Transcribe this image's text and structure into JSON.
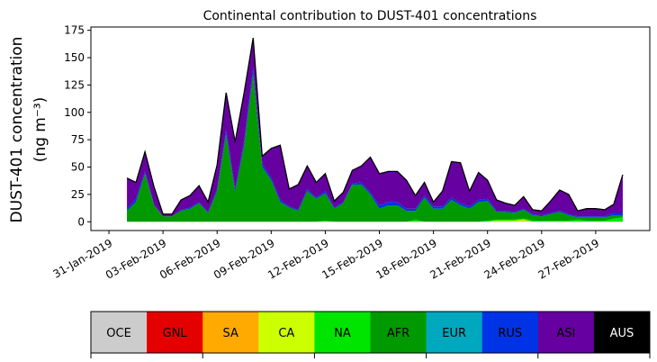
{
  "chart_data": {
    "type": "area",
    "title": "Continental contribution to DUST-401 concentrations",
    "ylabel_line1": "DUST-401 concentration",
    "ylabel_line2": "(ng m⁻³)",
    "xlabel": "",
    "stacked": true,
    "x_start": "2019-02-01",
    "x_step_days": 0.5,
    "x_tick_labels": [
      "31-Jan-2019",
      "03-Feb-2019",
      "06-Feb-2019",
      "09-Feb-2019",
      "12-Feb-2019",
      "15-Feb-2019",
      "18-Feb-2019",
      "21-Feb-2019",
      "24-Feb-2019",
      "27-Feb-2019"
    ],
    "x_tick_days": [
      -1,
      2,
      5,
      8,
      11,
      14,
      17,
      20,
      23,
      26
    ],
    "xlim_days": [
      -2,
      29
    ],
    "ylim": [
      -8,
      178
    ],
    "y_ticks": [
      0,
      25,
      50,
      75,
      100,
      125,
      150,
      175
    ],
    "total": [
      40,
      36,
      64,
      32,
      7,
      7,
      20,
      24,
      33,
      18,
      52,
      118,
      73,
      118,
      168,
      60,
      67,
      70,
      30,
      34,
      51,
      36,
      44,
      19,
      27,
      47,
      51,
      59,
      44,
      46,
      46,
      38,
      24,
      36,
      18,
      28,
      55,
      54,
      28,
      45,
      38,
      20,
      17,
      15,
      23,
      11,
      10,
      19,
      29,
      25,
      10,
      12,
      12,
      11,
      16,
      43
    ],
    "series": [
      {
        "name": "OCE",
        "color": "#cccccc",
        "values": [
          0,
          0,
          0,
          0,
          0,
          0,
          0,
          0,
          0,
          0,
          0,
          0,
          0,
          0,
          0,
          0,
          0,
          0,
          0,
          0,
          0,
          0,
          0,
          0,
          0,
          0,
          0,
          0,
          0,
          0,
          0,
          0,
          0,
          0,
          0,
          0,
          0,
          0,
          0,
          0,
          0,
          0,
          0,
          0,
          0,
          0,
          0,
          0,
          0,
          0,
          0,
          0,
          0,
          0,
          0,
          0
        ]
      },
      {
        "name": "GNL",
        "color": "#e50000",
        "values": [
          0,
          0,
          0,
          0,
          0,
          0,
          0,
          0,
          0,
          0,
          0,
          0,
          0,
          0,
          0,
          0,
          0,
          0,
          0,
          0,
          0,
          0,
          0,
          0,
          0,
          0,
          0,
          0,
          0,
          0,
          0,
          0,
          0,
          0,
          0,
          0,
          0,
          0,
          0,
          0,
          0,
          0,
          0,
          0,
          0,
          0,
          0,
          0,
          0,
          0,
          0,
          0,
          0,
          0,
          0,
          0
        ]
      },
      {
        "name": "SA",
        "color": "#ffaa00",
        "values": [
          0,
          0,
          0,
          0,
          0,
          0,
          0,
          0,
          0,
          0,
          0,
          0,
          0,
          0,
          0,
          0,
          0,
          0,
          0,
          0,
          0,
          0,
          0,
          0,
          0,
          0,
          0,
          0,
          0,
          0,
          0,
          0,
          0,
          0,
          0,
          0,
          0,
          0,
          0,
          0,
          0,
          0,
          0,
          0,
          1,
          0,
          0,
          0,
          0,
          0,
          0,
          0,
          0,
          0,
          0,
          0
        ]
      },
      {
        "name": "CA",
        "color": "#ccff00",
        "values": [
          0,
          0,
          0,
          0,
          0,
          0,
          0,
          0,
          0,
          0,
          0,
          0,
          0,
          0,
          0,
          0,
          0,
          0,
          0,
          0,
          0,
          0,
          0,
          0,
          0,
          0,
          0,
          0,
          0,
          0,
          0,
          0,
          0,
          0,
          0,
          0,
          0,
          0,
          0,
          0,
          0,
          1,
          1,
          1,
          1,
          0,
          0,
          0,
          0,
          0,
          0,
          0,
          0,
          0,
          0,
          0
        ]
      },
      {
        "name": "NA",
        "color": "#00e500",
        "values": [
          0,
          0,
          0,
          0,
          0,
          0,
          0,
          0,
          0,
          0,
          0,
          0,
          0,
          0,
          0,
          0,
          0,
          0,
          0,
          0,
          0,
          0,
          1,
          0,
          0,
          0,
          0,
          0,
          0,
          0,
          0,
          0,
          2,
          0,
          0,
          0,
          0,
          0,
          0,
          0,
          1,
          1,
          1,
          1,
          1,
          1,
          1,
          1,
          1,
          1,
          2,
          1,
          1,
          1,
          3,
          4
        ]
      },
      {
        "name": "AFR",
        "color": "#009900",
        "values": [
          10,
          18,
          44,
          15,
          5,
          5,
          10,
          12,
          17,
          8,
          28,
          80,
          27,
          70,
          135,
          50,
          38,
          18,
          13,
          10,
          28,
          21,
          25,
          12,
          17,
          34,
          34,
          25,
          12,
          15,
          15,
          10,
          8,
          22,
          12,
          12,
          20,
          15,
          12,
          18,
          18,
          7,
          7,
          6,
          8,
          5,
          4,
          6,
          8,
          5,
          2,
          3,
          3,
          3,
          3,
          2
        ]
      },
      {
        "name": "EUR",
        "color": "#00a8bf",
        "values": [
          0,
          0,
          0,
          0,
          0,
          0,
          0,
          0,
          0,
          0,
          0,
          0,
          0,
          0,
          0,
          0,
          0,
          0,
          0,
          0,
          0,
          0,
          0,
          0,
          0,
          0,
          0,
          0,
          0,
          0,
          0,
          0,
          0,
          0,
          0,
          0,
          0,
          0,
          0,
          0,
          0,
          0,
          0,
          0,
          0,
          0,
          0,
          0,
          0,
          0,
          0,
          0,
          0,
          0,
          0,
          0
        ]
      },
      {
        "name": "RUS",
        "color": "#0033e5",
        "values": [
          2,
          3,
          2,
          1,
          0,
          0,
          1,
          1,
          1,
          1,
          2,
          4,
          3,
          4,
          6,
          3,
          2,
          2,
          1,
          1,
          2,
          1,
          2,
          1,
          1,
          1,
          2,
          2,
          3,
          3,
          3,
          2,
          2,
          2,
          2,
          2,
          2,
          2,
          2,
          2,
          2,
          1,
          1,
          1,
          1,
          1,
          1,
          1,
          1,
          1,
          1,
          1,
          1,
          1,
          2,
          2
        ]
      },
      {
        "name": "ASI",
        "color": "#6600a0",
        "values": [
          28,
          15,
          18,
          16,
          2,
          2,
          9,
          11,
          15,
          9,
          22,
          34,
          43,
          44,
          27,
          7,
          27,
          50,
          16,
          23,
          21,
          14,
          16,
          6,
          9,
          12,
          15,
          32,
          29,
          28,
          28,
          26,
          12,
          12,
          4,
          14,
          33,
          37,
          14,
          25,
          17,
          10,
          7,
          6,
          12,
          4,
          4,
          11,
          19,
          18,
          5,
          7,
          7,
          6,
          8,
          35
        ]
      },
      {
        "name": "AUS",
        "color": "#000000",
        "values": [
          0,
          0,
          0,
          0,
          0,
          0,
          0,
          0,
          0,
          0,
          0,
          0,
          0,
          0,
          0,
          0,
          0,
          0,
          0,
          0,
          0,
          0,
          0,
          0,
          0,
          0,
          0,
          0,
          0,
          0,
          0,
          0,
          0,
          0,
          0,
          0,
          0,
          0,
          0,
          0,
          0,
          0,
          0,
          0,
          0,
          0,
          0,
          0,
          0,
          0,
          0,
          0,
          0,
          0,
          0,
          0
        ]
      }
    ],
    "legend": [
      {
        "label": "OCE",
        "color": "#cccccc",
        "text_color": "#000000"
      },
      {
        "label": "GNL",
        "color": "#e50000",
        "text_color": "#000000"
      },
      {
        "label": "SA",
        "color": "#ffaa00",
        "text_color": "#000000"
      },
      {
        "label": "CA",
        "color": "#ccff00",
        "text_color": "#000000"
      },
      {
        "label": "NA",
        "color": "#00e500",
        "text_color": "#000000"
      },
      {
        "label": "AFR",
        "color": "#009900",
        "text_color": "#000000"
      },
      {
        "label": "EUR",
        "color": "#00a8bf",
        "text_color": "#000000"
      },
      {
        "label": "RUS",
        "color": "#0033e5",
        "text_color": "#000000"
      },
      {
        "label": "ASI",
        "color": "#6600a0",
        "text_color": "#000000"
      },
      {
        "label": "AUS",
        "color": "#000000",
        "text_color": "#ffffff"
      }
    ],
    "legend_placement": "bottom",
    "grid": false
  }
}
